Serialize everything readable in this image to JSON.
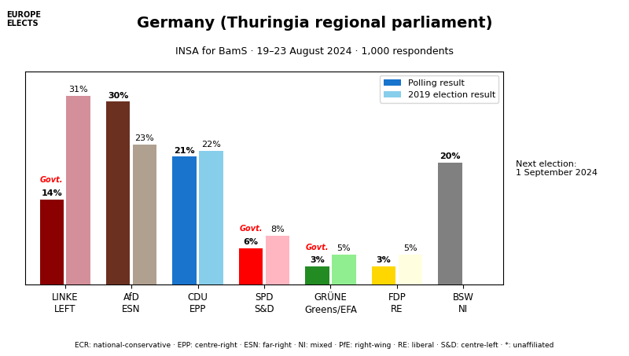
{
  "chart_data": {
    "type": "bar",
    "title": "Germany (Thuringia regional parliament)",
    "subtitle": "INSA for BamS · 19–23 August 2024 · 1,000 respondents",
    "categories": [
      "LINKE\nLEFT",
      "AfD\nESN",
      "CDU\nEPP",
      "SPD\nS&D",
      "GRÜNE\nGreens/EFA",
      "FDP\nRE",
      "BSW\nNI"
    ],
    "series": [
      {
        "name": "Polling result",
        "color": "#1874cd",
        "colors": [
          "#8b0000",
          "#6b3020",
          "#1874cd",
          "#ff0000",
          "#228b22",
          "#ffd700",
          "#808080"
        ],
        "values": [
          14,
          30,
          21,
          6,
          3,
          3,
          20
        ],
        "value_labels": [
          "14%",
          "30%",
          "21%",
          "6%",
          "3%",
          "3%",
          "20%"
        ]
      },
      {
        "name": "2019 election result",
        "color": "#87ceeb",
        "colors": [
          "#d4909a",
          "#b0a090",
          "#87ceeb",
          "#ffb6c1",
          "#90ee90",
          "#ffffe0",
          null
        ],
        "values": [
          31,
          23,
          22,
          8,
          5,
          5,
          null
        ],
        "value_labels": [
          "31%",
          "23%",
          "22%",
          "8%",
          "5%",
          "5%",
          null
        ]
      }
    ],
    "annotations": [
      {
        "text": "Govt.",
        "category": "LINKE\nLEFT",
        "color": "#ff0000"
      },
      {
        "text": "Govt.",
        "category": "SPD\nS&D",
        "color": "#ff0000"
      },
      {
        "text": "Govt.",
        "category": "GRÜNE\nGreens/EFA",
        "color": "#ff0000"
      },
      {
        "text": "EUROPE\nELECTS"
      },
      {
        "text": "Next election:\n1 September 2024"
      },
      {
        "text": "ECR: national-conservative · EPP: centre-right · ESN: far-right · NI: mixed · PfE: right-wing · RE: liberal · S&D: centre-left · *: unaffiliated"
      }
    ],
    "ylim": [
      0,
      35
    ],
    "grid": false,
    "legend": "upper right",
    "data_labels": true,
    "tick_labels": "x"
  }
}
